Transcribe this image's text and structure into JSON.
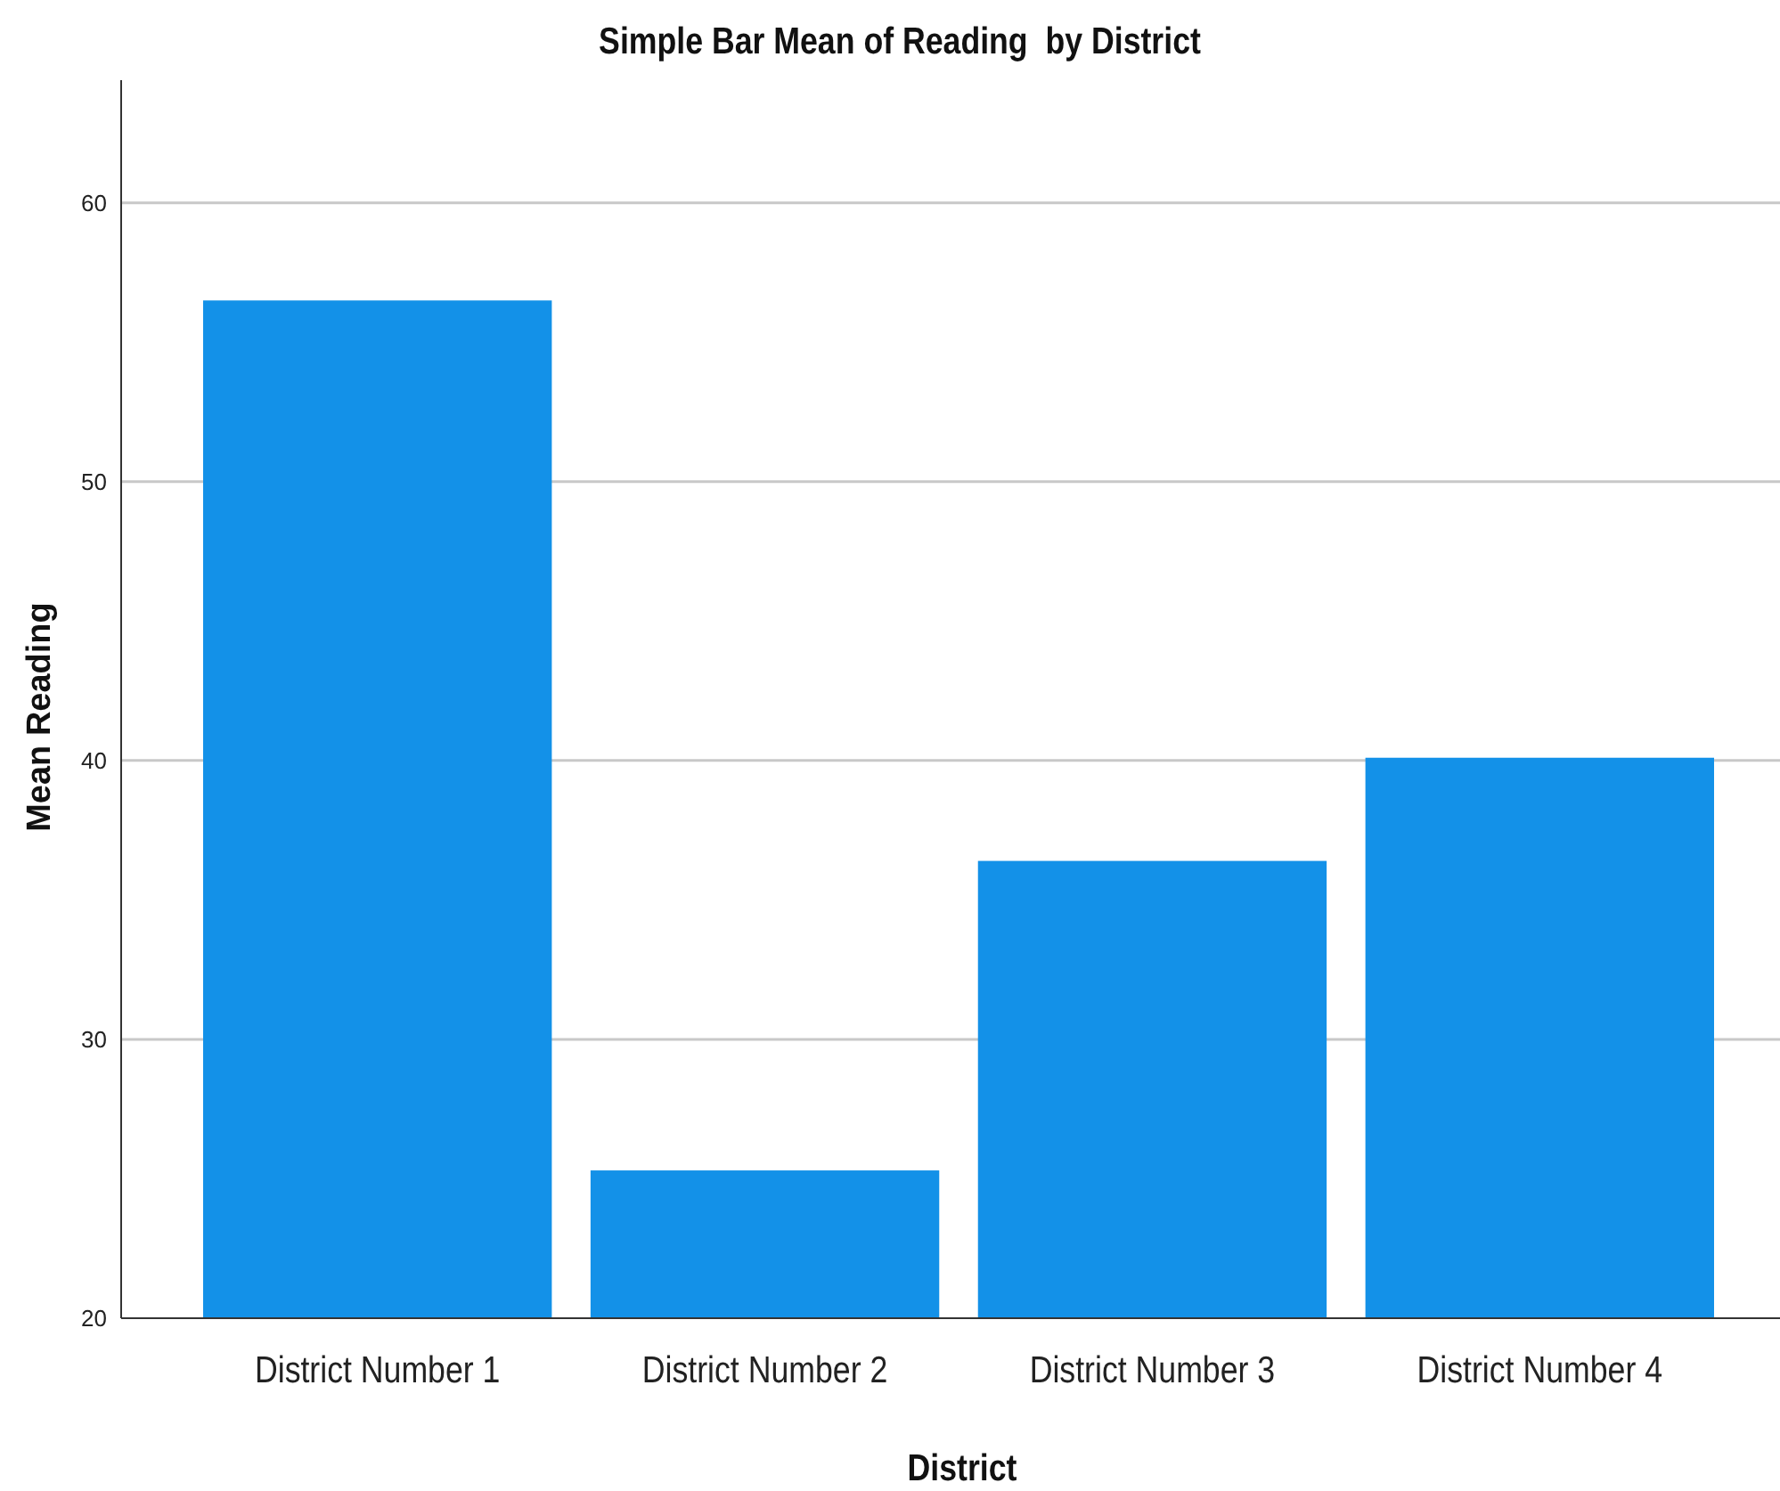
{
  "chart_data": {
    "type": "bar",
    "title": "Simple Bar Mean of Reading  by District",
    "xlabel": "District",
    "ylabel": "Mean Reading",
    "categories": [
      "District Number 1",
      "District Number 2",
      "District Number 3",
      "District Number 4"
    ],
    "values": [
      56.5,
      25.3,
      36.4,
      40.1
    ],
    "color": "#1391e8",
    "ylim": [
      20,
      64.4
    ],
    "yticks": [
      20,
      30,
      40,
      50,
      60
    ],
    "grid": "y"
  }
}
